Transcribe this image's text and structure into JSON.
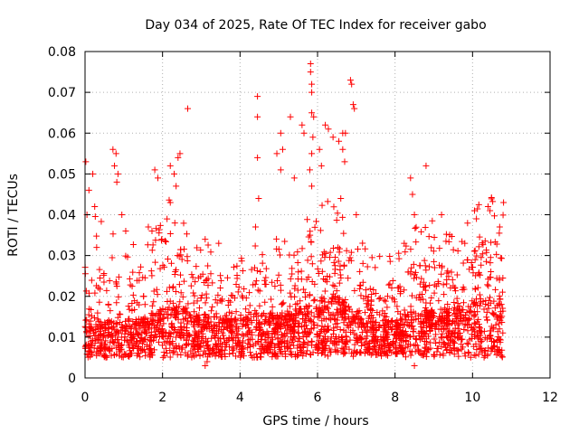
{
  "chart_data": {
    "type": "scatter",
    "title": "Day 034 of 2025, Rate Of TEC Index for receiver gabo",
    "xlabel": "GPS time / hours",
    "ylabel": "ROTI / TECUs",
    "xlim": [
      0,
      12
    ],
    "ylim": [
      0,
      0.08
    ],
    "x_ticks": [
      0,
      2,
      4,
      6,
      8,
      10,
      12
    ],
    "y_ticks": [
      0,
      0.01,
      0.02,
      0.03,
      0.04,
      0.05,
      0.06,
      0.07,
      0.08
    ],
    "x_tick_labels": [
      "0",
      "2",
      "4",
      "6",
      "8",
      "10",
      "12"
    ],
    "y_tick_labels": [
      "0",
      "0.01",
      "0.02",
      "0.03",
      "0.04",
      "0.05",
      "0.06",
      "0.07",
      "0.08"
    ],
    "grid": true,
    "marker": "+",
    "marker_color": "#ff0000",
    "series": [
      {
        "name": "ROTI",
        "description_note": "dense cloud of ~0.005-0.02 TECU/min from 0 to 10.8 h",
        "points": [
          [
            0.02,
            0.053
          ],
          [
            0.05,
            0.04
          ],
          [
            0.1,
            0.046
          ],
          [
            0.2,
            0.05
          ],
          [
            0.25,
            0.042
          ],
          [
            0.3,
            0.032
          ],
          [
            0.72,
            0.056
          ],
          [
            0.8,
            0.055
          ],
          [
            0.76,
            0.052
          ],
          [
            0.82,
            0.048
          ],
          [
            0.85,
            0.05
          ],
          [
            0.95,
            0.04
          ],
          [
            1.05,
            0.036
          ],
          [
            1.8,
            0.051
          ],
          [
            1.88,
            0.049
          ],
          [
            2.2,
            0.052
          ],
          [
            2.3,
            0.05
          ],
          [
            2.45,
            0.055
          ],
          [
            2.4,
            0.054
          ],
          [
            2.35,
            0.047
          ],
          [
            2.2,
            0.043
          ],
          [
            2.65,
            0.066
          ],
          [
            3.1,
            0.034
          ],
          [
            3.45,
            0.033
          ],
          [
            4.45,
            0.069
          ],
          [
            4.45,
            0.064
          ],
          [
            4.45,
            0.054
          ],
          [
            4.48,
            0.044
          ],
          [
            4.4,
            0.037
          ],
          [
            4.95,
            0.055
          ],
          [
            5.05,
            0.06
          ],
          [
            5.1,
            0.056
          ],
          [
            5.05,
            0.051
          ],
          [
            5.3,
            0.064
          ],
          [
            5.4,
            0.049
          ],
          [
            5.6,
            0.062
          ],
          [
            5.65,
            0.06
          ],
          [
            5.82,
            0.077
          ],
          [
            5.82,
            0.075
          ],
          [
            5.85,
            0.072
          ],
          [
            5.85,
            0.07
          ],
          [
            5.85,
            0.065
          ],
          [
            5.9,
            0.064
          ],
          [
            5.88,
            0.059
          ],
          [
            5.85,
            0.055
          ],
          [
            5.8,
            0.051
          ],
          [
            5.85,
            0.047
          ],
          [
            6.05,
            0.056
          ],
          [
            6.1,
            0.052
          ],
          [
            6.2,
            0.062
          ],
          [
            6.28,
            0.061
          ],
          [
            6.4,
            0.059
          ],
          [
            6.55,
            0.058
          ],
          [
            6.65,
            0.06
          ],
          [
            6.72,
            0.06
          ],
          [
            6.65,
            0.056
          ],
          [
            6.7,
            0.053
          ],
          [
            6.85,
            0.073
          ],
          [
            6.88,
            0.072
          ],
          [
            6.92,
            0.067
          ],
          [
            6.95,
            0.066
          ],
          [
            6.6,
            0.044
          ],
          [
            7.0,
            0.04
          ],
          [
            8.4,
            0.049
          ],
          [
            8.45,
            0.045
          ],
          [
            8.8,
            0.052
          ],
          [
            8.5,
            0.04
          ],
          [
            9.2,
            0.04
          ],
          [
            9.8,
            0.033
          ],
          [
            10.05,
            0.041
          ],
          [
            10.1,
            0.039
          ],
          [
            10.4,
            0.042
          ],
          [
            10.45,
            0.041
          ],
          [
            10.8,
            0.043
          ],
          [
            10.7,
            0.037
          ],
          [
            3.1,
            0.003
          ],
          [
            3.15,
            0.004
          ],
          [
            8.5,
            0.003
          ]
        ],
        "dense_band": {
          "x_range": [
            0,
            10.8
          ],
          "y_base_range": [
            0.005,
            0.02
          ],
          "profile": [
            [
              0.0,
              0.012,
              0.033
            ],
            [
              0.5,
              0.01,
              0.028
            ],
            [
              1.0,
              0.01,
              0.022
            ],
            [
              1.5,
              0.011,
              0.026
            ],
            [
              2.0,
              0.013,
              0.034
            ],
            [
              2.5,
              0.014,
              0.033
            ],
            [
              3.0,
              0.012,
              0.026
            ],
            [
              3.5,
              0.011,
              0.022
            ],
            [
              4.0,
              0.011,
              0.021
            ],
            [
              4.5,
              0.012,
              0.026
            ],
            [
              5.0,
              0.012,
              0.024
            ],
            [
              5.5,
              0.013,
              0.026
            ],
            [
              6.0,
              0.016,
              0.034
            ],
            [
              6.5,
              0.016,
              0.033
            ],
            [
              7.0,
              0.013,
              0.028
            ],
            [
              7.5,
              0.011,
              0.022
            ],
            [
              8.0,
              0.01,
              0.02
            ],
            [
              8.5,
              0.013,
              0.03
            ],
            [
              9.0,
              0.013,
              0.029
            ],
            [
              9.5,
              0.013,
              0.026
            ],
            [
              10.0,
              0.015,
              0.033
            ],
            [
              10.5,
              0.016,
              0.035
            ],
            [
              10.8,
              0.014,
              0.03
            ]
          ]
        }
      }
    ]
  }
}
